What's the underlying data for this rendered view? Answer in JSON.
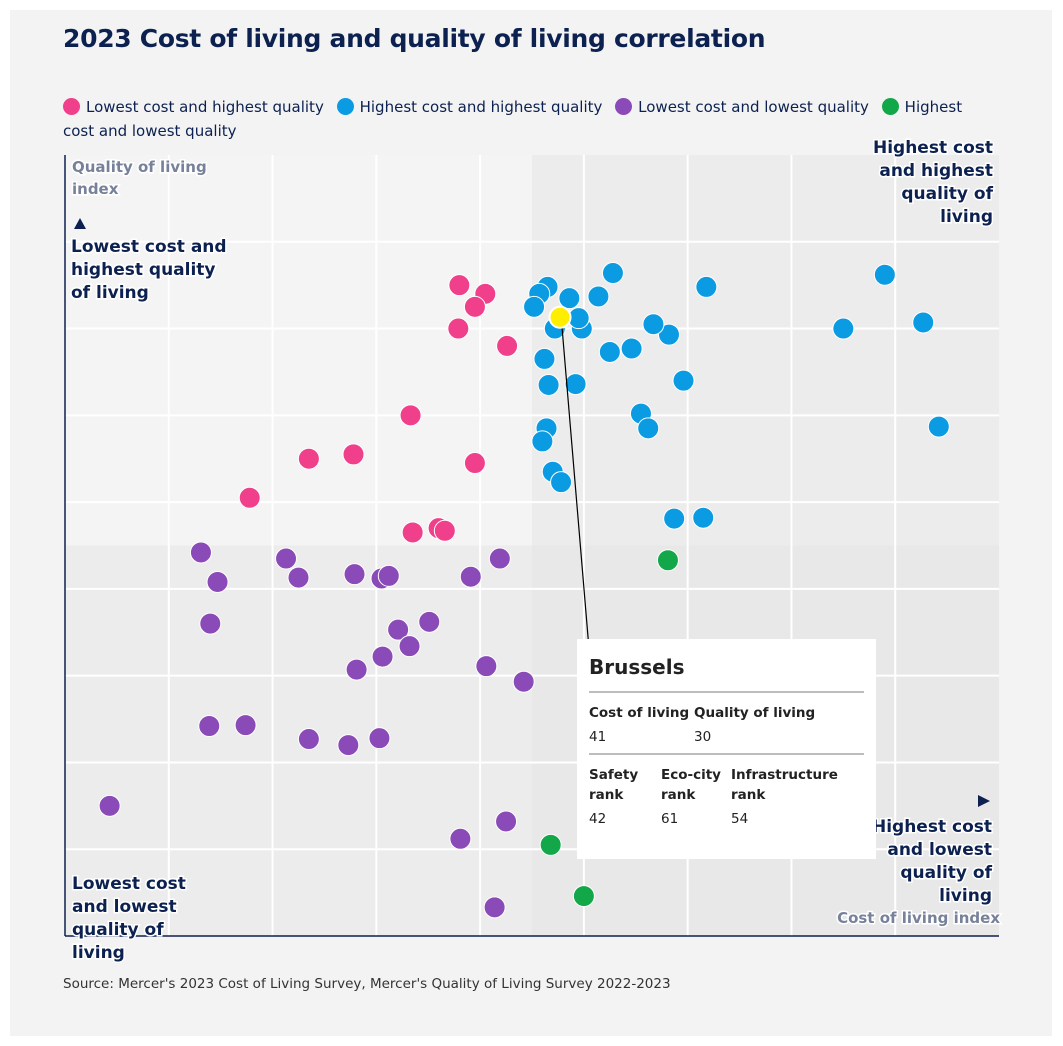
{
  "source": "Source: Mercer's 2023 Cost of Living Survey, Mercer's Quality of Living Survey 2022-2023",
  "colors": {
    "pink": "#f0408b",
    "blue": "#0b9be3",
    "purple": "#8a4bb8",
    "green": "#12a84a",
    "highlight": "#ffee00",
    "navy": "#0c2150"
  },
  "chart_data": {
    "type": "scatter",
    "title": "2023 Cost of living and quality of living correlation",
    "xlabel": "Cost of living index",
    "ylabel": "Quality of living index",
    "xlim": [
      0,
      90
    ],
    "ylim": [
      0,
      90
    ],
    "grid": true,
    "legend_position": "top",
    "legend": [
      {
        "name": "Lowest cost and highest quality",
        "color": "#f0408b"
      },
      {
        "name": "Highest cost and highest quality",
        "color": "#0b9be3"
      },
      {
        "name": "Lowest cost and lowest quality",
        "color": "#8a4bb8"
      },
      {
        "name": "Highest cost and lowest quality",
        "color": "#12a84a"
      }
    ],
    "quadrant_labels": {
      "top_left": "Lowest cost and highest quality of living",
      "top_right": "Highest cost and highest quality of living",
      "bottom_left": "Lowest cost and lowest quality of living",
      "bottom_right": "Highest cost and lowest quality of living"
    },
    "series": [
      {
        "name": "Lowest cost and highest quality",
        "color": "#f0408b",
        "points": [
          [
            38,
            75
          ],
          [
            40.5,
            74
          ],
          [
            39.5,
            72.5
          ],
          [
            37.9,
            70
          ],
          [
            42.6,
            68
          ],
          [
            33.3,
            60
          ],
          [
            39.5,
            54.5
          ],
          [
            23.5,
            55
          ],
          [
            27.8,
            55.5
          ],
          [
            17.8,
            50.5
          ],
          [
            33.5,
            46.5
          ],
          [
            36,
            47
          ],
          [
            36.6,
            46.7
          ]
        ]
      },
      {
        "name": "Highest cost and highest quality",
        "color": "#0b9be3",
        "points": [
          [
            46.5,
            74.8
          ],
          [
            45.7,
            74
          ],
          [
            52.8,
            76.4
          ],
          [
            48.6,
            73.5
          ],
          [
            51.4,
            73.7
          ],
          [
            45.2,
            72.5
          ],
          [
            61.8,
            74.8
          ],
          [
            47.2,
            70
          ],
          [
            49.8,
            70
          ],
          [
            49.5,
            71.2
          ],
          [
            58.2,
            69.3
          ],
          [
            56.7,
            70.5
          ],
          [
            75,
            70
          ],
          [
            79,
            76.2
          ],
          [
            82.7,
            70.7
          ],
          [
            52.5,
            67.3
          ],
          [
            54.6,
            67.7
          ],
          [
            46.2,
            66.5
          ],
          [
            46.6,
            63.5
          ],
          [
            49.2,
            63.6
          ],
          [
            59.6,
            64
          ],
          [
            55.5,
            60.2
          ],
          [
            56.2,
            58.5
          ],
          [
            46.4,
            58.5
          ],
          [
            46,
            57
          ],
          [
            47,
            53.5
          ],
          [
            47.8,
            52.3
          ],
          [
            58.7,
            48.1
          ],
          [
            61.5,
            48.2
          ],
          [
            84.2,
            58.7
          ]
        ]
      },
      {
        "name": "Lowest cost and lowest quality",
        "color": "#8a4bb8",
        "points": [
          [
            13.1,
            44.2
          ],
          [
            14.7,
            40.8
          ],
          [
            21.3,
            43.5
          ],
          [
            22.5,
            41.3
          ],
          [
            27.9,
            41.7
          ],
          [
            30.5,
            41.2
          ],
          [
            31.2,
            41.5
          ],
          [
            39.1,
            41.4
          ],
          [
            41.9,
            43.5
          ],
          [
            35.1,
            36.2
          ],
          [
            14,
            36
          ],
          [
            32.1,
            35.3
          ],
          [
            33.2,
            33.4
          ],
          [
            30.6,
            32.2
          ],
          [
            28.1,
            30.7
          ],
          [
            40.6,
            31.1
          ],
          [
            44.2,
            29.3
          ],
          [
            13.9,
            24.2
          ],
          [
            17.4,
            24.3
          ],
          [
            23.5,
            22.7
          ],
          [
            27.3,
            22
          ],
          [
            30.3,
            22.8
          ],
          [
            4.3,
            15
          ],
          [
            42.5,
            13.2
          ],
          [
            38.1,
            11.2
          ],
          [
            41.4,
            3.3
          ]
        ]
      },
      {
        "name": "Highest cost and lowest quality",
        "color": "#12a84a",
        "points": [
          [
            58.1,
            43.3
          ],
          [
            46.8,
            10.5
          ],
          [
            50,
            4.6
          ]
        ]
      }
    ],
    "highlight": {
      "point": [
        47.7,
        71.3
      ],
      "color": "#ffee00",
      "tooltip_anchor": [
        50.5,
        33
      ]
    },
    "tooltip": {
      "city": "Brussels",
      "row1": [
        {
          "label": "Cost of living",
          "value": "41"
        },
        {
          "label": "Quality of living",
          "value": "30"
        }
      ],
      "row2": [
        {
          "label": "Safety rank",
          "value": "42"
        },
        {
          "label": "Eco-city rank",
          "value": "61"
        },
        {
          "label": "Infrastructure rank",
          "value": "54"
        }
      ]
    }
  }
}
